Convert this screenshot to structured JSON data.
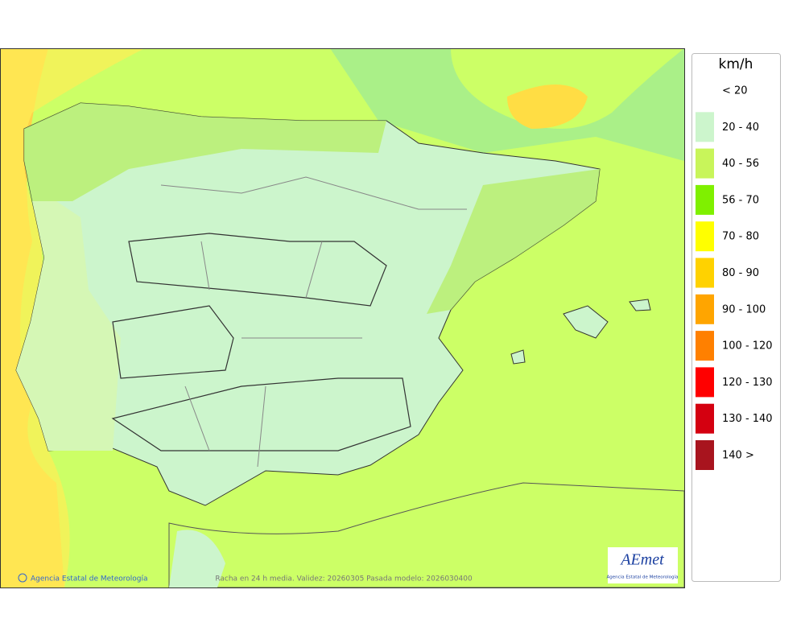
{
  "legend": {
    "unit": "km/h",
    "items": [
      {
        "label": "< 20",
        "color": "#ffffff"
      },
      {
        "label": "20 - 40",
        "color": "#ccf5cc"
      },
      {
        "label": "40 - 56",
        "color": "#c8f55a"
      },
      {
        "label": "56 - 70",
        "color": "#7ff000"
      },
      {
        "label": "70 - 80",
        "color": "#ffff00"
      },
      {
        "label": "80 - 90",
        "color": "#ffd200"
      },
      {
        "label": "90 - 100",
        "color": "#ffa500"
      },
      {
        "label": "100 - 120",
        "color": "#ff8000"
      },
      {
        "label": "120 - 130",
        "color": "#ff0000"
      },
      {
        "label": "130 - 140",
        "color": "#d40010"
      },
      {
        "label": "140 >",
        "color": "#a8141e"
      }
    ]
  },
  "footer": {
    "credit": "Agencia Estatal de Meteorología",
    "caption": "Racha en 24 h media. Validez: 20260305 Pasada modelo: 2026030400"
  },
  "logo": {
    "name": "AEmet",
    "subtitle": "Agencia Estatal de Meteorología"
  }
}
